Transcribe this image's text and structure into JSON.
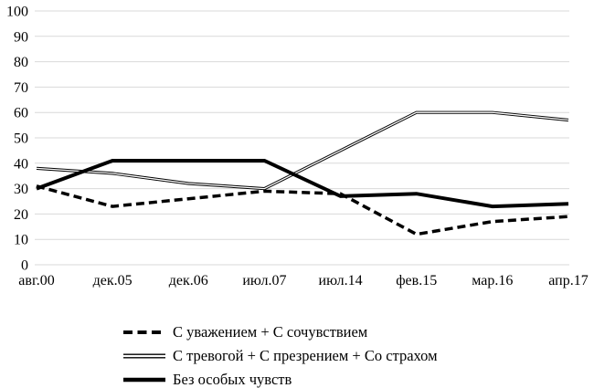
{
  "chart_data": {
    "type": "line",
    "title": "",
    "xlabel": "",
    "ylabel": "",
    "categories": [
      "авг.00",
      "дек.05",
      "дек.06",
      "июл.07",
      "июл.14",
      "фев.15",
      "мар.16",
      "апр.17"
    ],
    "series": [
      {
        "name": "С уважением + С сочувствием",
        "style": "dashed",
        "values": [
          31,
          23,
          26,
          29,
          28,
          12,
          17,
          19
        ]
      },
      {
        "name": "С тревогой + С презрением + Со страхом",
        "style": "double",
        "values": [
          38,
          36,
          32,
          30,
          45,
          60,
          60,
          57
        ]
      },
      {
        "name": "Без особых чувств",
        "style": "thick",
        "values": [
          30,
          41,
          41,
          41,
          27,
          28,
          23,
          24
        ]
      }
    ],
    "ylim": [
      0,
      100
    ],
    "ytick_step": 10,
    "grid": true,
    "legend_position": "bottom-left",
    "colors": {
      "line": "#000000",
      "grid": "#d9d9d9",
      "text": "#000000",
      "background": "#ffffff"
    }
  }
}
